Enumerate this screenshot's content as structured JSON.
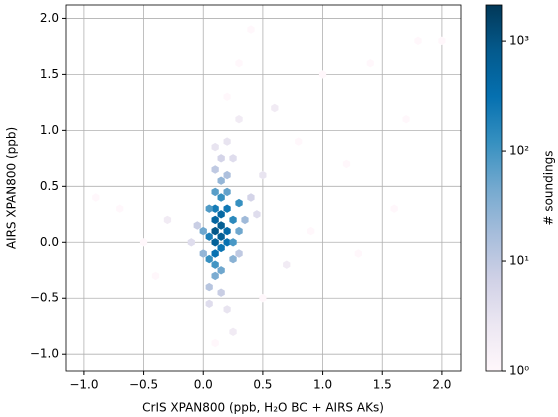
{
  "chart_data": {
    "type": "hexbin",
    "xlabel": "CrIS XPAN800 (ppb, H₂O BC + AIRS AKs)",
    "ylabel": "AIRS XPAN800 (ppb)",
    "colorbar_label": "# soundings",
    "xlim": [
      -1.15,
      2.16
    ],
    "ylim": [
      -1.15,
      2.12
    ],
    "xticks": [
      {
        "value": -1.0,
        "label": "−1.0"
      },
      {
        "value": -0.5,
        "label": "−0.5"
      },
      {
        "value": 0,
        "label": "0.0"
      },
      {
        "value": 0.5,
        "label": "0.5"
      },
      {
        "value": 1.0,
        "label": "1.0"
      },
      {
        "value": 1.5,
        "label": "1.5"
      },
      {
        "value": 2.0,
        "label": "2.0"
      }
    ],
    "yticks": [
      {
        "value": -1.0,
        "label": "−1.0"
      },
      {
        "value": -0.5,
        "label": "−0.5"
      },
      {
        "value": 0,
        "label": "0.0"
      },
      {
        "value": 0.5,
        "label": "0.5"
      },
      {
        "value": 1.0,
        "label": "1.0"
      },
      {
        "value": 1.5,
        "label": "1.5"
      },
      {
        "value": 2.0,
        "label": "2.0"
      }
    ],
    "grid": true,
    "clim": [
      1,
      2130
    ],
    "color_log_scale": true,
    "cticks": [
      {
        "value": 1,
        "label": "10⁰"
      },
      {
        "value": 10,
        "label": "10¹"
      },
      {
        "value": 100,
        "label": "10²"
      },
      {
        "value": 1000,
        "label": "10³"
      }
    ],
    "colormap": [
      "#fff7fb",
      "#ece7f2",
      "#d0d1e6",
      "#a6bddb",
      "#74a9cf",
      "#3690c0",
      "#0570b0",
      "#045a8d",
      "#023858"
    ],
    "x": [
      0.1,
      0.1,
      0.1,
      0.15,
      0.15,
      0.15,
      0.2,
      0.2,
      0.1,
      0.15,
      0.05,
      0.1,
      0.2,
      0.25,
      0.05,
      0.1,
      0.15,
      0.2,
      0.1,
      0.25,
      0.3,
      0.3,
      0.05,
      0.0,
      0.1,
      0.15,
      0.15,
      0.2,
      0.1,
      0.25,
      0.3,
      0.35,
      0.0,
      -0.05,
      0.05,
      0.15,
      0.15,
      0.25,
      0.2,
      0.1,
      0.4,
      0.45,
      -0.1,
      0.05,
      0.2,
      0.25,
      0.3,
      0.5,
      0.6,
      0.8,
      1.0,
      1.2,
      1.4,
      1.6,
      1.8,
      0.7,
      0.9,
      -0.3,
      -0.5,
      -0.7,
      -0.9,
      -0.4,
      0.5,
      1.3,
      0.3,
      0.2,
      0.1,
      1.7,
      2.0,
      0.4
    ],
    "y": [
      0.1,
      0.0,
      0.2,
      0.15,
      0.05,
      0.25,
      0.1,
      0.3,
      -0.1,
      -0.05,
      0.05,
      0.3,
      0.0,
      0.2,
      -0.15,
      -0.2,
      0.4,
      0.45,
      0.45,
      0.0,
      0.1,
      0.35,
      0.3,
      0.1,
      -0.3,
      -0.25,
      0.55,
      0.6,
      0.65,
      -0.15,
      -0.1,
      0.2,
      -0.1,
      0.15,
      -0.4,
      -0.45,
      0.75,
      0.75,
      0.9,
      0.85,
      0.4,
      0.25,
      0.0,
      -0.55,
      -0.6,
      -0.8,
      1.1,
      0.6,
      1.2,
      0.9,
      1.5,
      0.7,
      1.6,
      0.3,
      1.8,
      -0.2,
      0.1,
      0.2,
      0.0,
      0.3,
      0.4,
      -0.3,
      -0.5,
      -0.1,
      1.6,
      1.3,
      -0.9,
      1.1,
      1.8,
      1.9
    ],
    "counts": [
      900,
      600,
      500,
      700,
      650,
      450,
      400,
      250,
      300,
      280,
      200,
      220,
      300,
      150,
      120,
      100,
      120,
      60,
      70,
      90,
      50,
      120,
      80,
      50,
      40,
      50,
      25,
      15,
      10,
      30,
      10,
      20,
      25,
      8,
      12,
      8,
      6,
      4,
      3,
      3,
      6,
      4,
      4,
      4,
      3,
      2,
      2,
      3,
      2,
      1,
      1,
      1,
      1,
      1,
      1,
      2,
      1,
      2,
      1,
      1,
      1,
      1,
      1,
      1,
      1,
      1,
      1,
      1,
      1,
      1
    ]
  }
}
